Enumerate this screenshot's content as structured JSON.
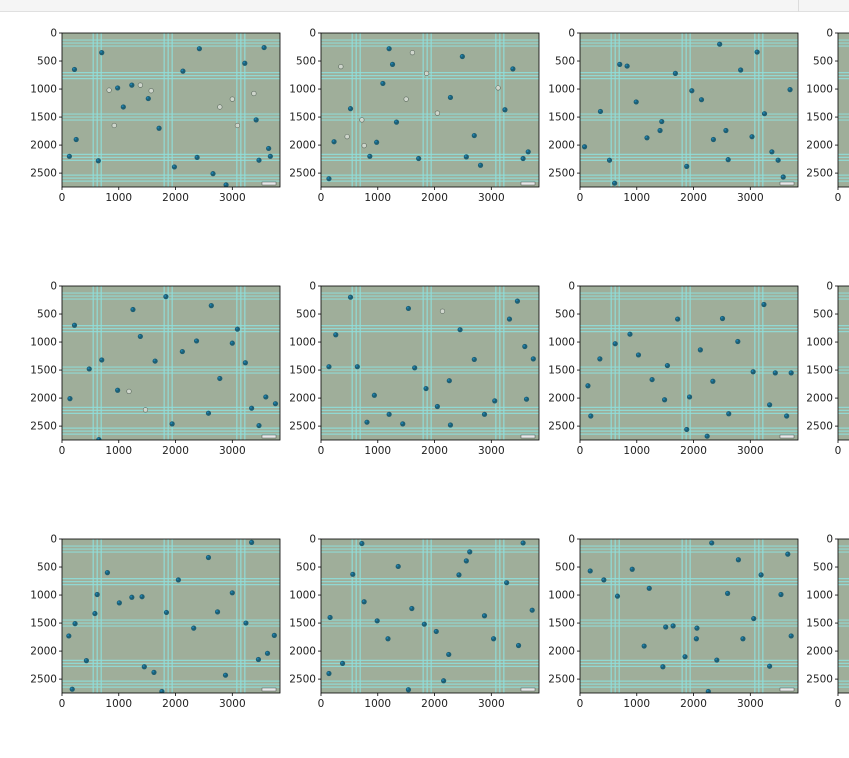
{
  "window": {
    "title": ""
  },
  "colors": {
    "background": "#9fae9a",
    "grid": "#8fe0dc",
    "cell_dark": "#1d5f74",
    "cell_accent": "#1f84b3",
    "cell_light": "#cfd6cc",
    "axis": "#000000"
  },
  "chart_data": {
    "type": "image-grid",
    "layout": {
      "rows": 3,
      "cols": 4
    },
    "xlim": [
      0,
      3840
    ],
    "ylim": [
      2748,
      0
    ],
    "xticks": [
      0,
      1000,
      2000,
      3000
    ],
    "yticks": [
      0,
      500,
      1000,
      1500,
      2000,
      2500
    ],
    "xlabel": "",
    "ylabel": "",
    "grid_lines": {
      "vertical_x": [
        620,
        1870,
        3150
      ],
      "horizontal_y": [
        180,
        760,
        1500,
        2220,
        2590
      ]
    },
    "panels": [
      {
        "id": "r1c1",
        "row": 1,
        "col": 1,
        "cells": [
          [
            220,
            650,
            "d"
          ],
          [
            700,
            350,
            "d"
          ],
          [
            830,
            1020,
            "l"
          ],
          [
            980,
            980,
            "d"
          ],
          [
            1080,
            1320,
            "d"
          ],
          [
            1230,
            930,
            "d"
          ],
          [
            1380,
            930,
            "l"
          ],
          [
            1570,
            1030,
            "l"
          ],
          [
            1710,
            1700,
            "d"
          ],
          [
            2130,
            680,
            "d"
          ],
          [
            2420,
            280,
            "d"
          ],
          [
            2660,
            2510,
            "d"
          ],
          [
            2780,
            1320,
            "l"
          ],
          [
            3000,
            1180,
            "l"
          ],
          [
            3090,
            1650,
            "l"
          ],
          [
            3220,
            540,
            "d"
          ],
          [
            3420,
            1550,
            "d"
          ],
          [
            3560,
            260,
            "d"
          ],
          [
            3640,
            2060,
            "d"
          ],
          [
            3670,
            2200,
            "d"
          ],
          [
            250,
            1900,
            "d"
          ],
          [
            640,
            2280,
            "d"
          ],
          [
            920,
            1650,
            "l"
          ],
          [
            1520,
            1170,
            "d"
          ],
          [
            1980,
            2390,
            "d"
          ],
          [
            2380,
            2220,
            "d"
          ],
          [
            2890,
            2710,
            "d"
          ],
          [
            3380,
            1080,
            "l"
          ],
          [
            3470,
            2270,
            "d"
          ],
          [
            130,
            2200,
            "d"
          ]
        ]
      },
      {
        "id": "r1c2",
        "row": 1,
        "col": 2,
        "cells": [
          [
            350,
            600,
            "l"
          ],
          [
            520,
            1350,
            "d"
          ],
          [
            720,
            1550,
            "l"
          ],
          [
            860,
            2200,
            "d"
          ],
          [
            980,
            1950,
            "d"
          ],
          [
            1200,
            280,
            "d"
          ],
          [
            1260,
            560,
            "d"
          ],
          [
            1500,
            1180,
            "l"
          ],
          [
            1720,
            2240,
            "d"
          ],
          [
            2050,
            1430,
            "l"
          ],
          [
            2280,
            1150,
            "d"
          ],
          [
            2490,
            420,
            "d"
          ],
          [
            2700,
            1830,
            "d"
          ],
          [
            3120,
            980,
            "l"
          ],
          [
            3380,
            640,
            "d"
          ],
          [
            3560,
            2240,
            "d"
          ],
          [
            230,
            1940,
            "d"
          ],
          [
            460,
            1850,
            "l"
          ],
          [
            760,
            2010,
            "l"
          ],
          [
            1090,
            900,
            "d"
          ],
          [
            1330,
            1590,
            "d"
          ],
          [
            1610,
            350,
            "l"
          ],
          [
            2810,
            2360,
            "d"
          ],
          [
            3240,
            1370,
            "d"
          ],
          [
            3650,
            2120,
            "d"
          ],
          [
            140,
            2600,
            "d"
          ],
          [
            1860,
            720,
            "l"
          ],
          [
            2560,
            2210,
            "d"
          ]
        ]
      },
      {
        "id": "r1c3",
        "row": 1,
        "col": 3,
        "cells": [
          [
            80,
            2030,
            "d"
          ],
          [
            360,
            1400,
            "d"
          ],
          [
            520,
            2270,
            "d"
          ],
          [
            700,
            560,
            "d"
          ],
          [
            830,
            590,
            "d"
          ],
          [
            990,
            1230,
            "d"
          ],
          [
            1180,
            1870,
            "d"
          ],
          [
            1410,
            1740,
            "d"
          ],
          [
            1680,
            720,
            "d"
          ],
          [
            1880,
            2380,
            "d"
          ],
          [
            2140,
            1190,
            "d"
          ],
          [
            2350,
            1900,
            "d"
          ],
          [
            2570,
            1740,
            "d"
          ],
          [
            2830,
            660,
            "d"
          ],
          [
            3030,
            1850,
            "d"
          ],
          [
            3250,
            1440,
            "d"
          ],
          [
            3490,
            2270,
            "d"
          ],
          [
            3700,
            1010,
            "d"
          ],
          [
            3580,
            2570,
            "d"
          ],
          [
            610,
            2680,
            "d"
          ],
          [
            1440,
            1580,
            "d"
          ],
          [
            2610,
            2260,
            "d"
          ],
          [
            3120,
            340,
            "d"
          ],
          [
            3380,
            2120,
            "d"
          ],
          [
            1970,
            1030,
            "d"
          ],
          [
            2460,
            200,
            "d"
          ]
        ]
      },
      {
        "id": "r2c1",
        "row": 2,
        "col": 1,
        "cells": [
          [
            220,
            700,
            "d"
          ],
          [
            480,
            1480,
            "d"
          ],
          [
            700,
            1320,
            "d"
          ],
          [
            980,
            1860,
            "d"
          ],
          [
            1250,
            420,
            "d"
          ],
          [
            1380,
            900,
            "d"
          ],
          [
            1640,
            1340,
            "d"
          ],
          [
            1830,
            190,
            "d"
          ],
          [
            2120,
            1170,
            "d"
          ],
          [
            2370,
            980,
            "d"
          ],
          [
            2580,
            2270,
            "d"
          ],
          [
            2780,
            1650,
            "d"
          ],
          [
            3000,
            1020,
            "d"
          ],
          [
            3230,
            1370,
            "d"
          ],
          [
            3340,
            2180,
            "d"
          ],
          [
            3470,
            2490,
            "d"
          ],
          [
            3590,
            1980,
            "d"
          ],
          [
            3760,
            2100,
            "d"
          ],
          [
            140,
            2010,
            "d"
          ],
          [
            650,
            2740,
            "d"
          ],
          [
            1470,
            2210,
            "l"
          ],
          [
            1940,
            2460,
            "d"
          ],
          [
            2630,
            350,
            "d"
          ],
          [
            3090,
            770,
            "d"
          ],
          [
            1180,
            1880,
            "l"
          ]
        ]
      },
      {
        "id": "r2c2",
        "row": 2,
        "col": 2,
        "cells": [
          [
            260,
            870,
            "d"
          ],
          [
            520,
            200,
            "d"
          ],
          [
            810,
            2430,
            "d"
          ],
          [
            940,
            1950,
            "d"
          ],
          [
            1200,
            2290,
            "d"
          ],
          [
            1440,
            2460,
            "d"
          ],
          [
            1650,
            1460,
            "d"
          ],
          [
            1850,
            1830,
            "d"
          ],
          [
            2050,
            2150,
            "d"
          ],
          [
            2260,
            1690,
            "d"
          ],
          [
            2450,
            780,
            "d"
          ],
          [
            2700,
            1310,
            "d"
          ],
          [
            2880,
            2290,
            "d"
          ],
          [
            3060,
            2050,
            "d"
          ],
          [
            3320,
            590,
            "d"
          ],
          [
            3590,
            1080,
            "d"
          ],
          [
            3740,
            1300,
            "d"
          ],
          [
            140,
            1440,
            "d"
          ],
          [
            640,
            1440,
            "d"
          ],
          [
            1540,
            400,
            "d"
          ],
          [
            2140,
            450,
            "l"
          ],
          [
            3460,
            270,
            "d"
          ],
          [
            2280,
            2480,
            "d"
          ],
          [
            3620,
            2020,
            "d"
          ]
        ]
      },
      {
        "id": "r2c3",
        "row": 2,
        "col": 3,
        "cells": [
          [
            190,
            2320,
            "d"
          ],
          [
            350,
            1300,
            "d"
          ],
          [
            620,
            1030,
            "d"
          ],
          [
            880,
            860,
            "d"
          ],
          [
            1030,
            1230,
            "d"
          ],
          [
            1270,
            1670,
            "d"
          ],
          [
            1490,
            2030,
            "d"
          ],
          [
            1720,
            590,
            "d"
          ],
          [
            1930,
            1980,
            "d"
          ],
          [
            2120,
            1140,
            "d"
          ],
          [
            2340,
            1700,
            "d"
          ],
          [
            2510,
            580,
            "d"
          ],
          [
            2780,
            990,
            "d"
          ],
          [
            3050,
            1530,
            "d"
          ],
          [
            3240,
            330,
            "d"
          ],
          [
            3440,
            1550,
            "d"
          ],
          [
            3640,
            2320,
            "d"
          ],
          [
            3720,
            1550,
            "d"
          ],
          [
            140,
            1780,
            "d"
          ],
          [
            1540,
            1420,
            "d"
          ],
          [
            2620,
            2280,
            "d"
          ],
          [
            3340,
            2120,
            "d"
          ],
          [
            1880,
            2560,
            "d"
          ],
          [
            2240,
            2680,
            "d"
          ]
        ]
      },
      {
        "id": "r3c1",
        "row": 3,
        "col": 1,
        "cells": [
          [
            230,
            1510,
            "d"
          ],
          [
            430,
            2170,
            "d"
          ],
          [
            620,
            990,
            "d"
          ],
          [
            800,
            600,
            "d"
          ],
          [
            1010,
            1140,
            "d"
          ],
          [
            1230,
            1040,
            "d"
          ],
          [
            1410,
            1030,
            "d"
          ],
          [
            1620,
            2380,
            "d"
          ],
          [
            1840,
            1310,
            "d"
          ],
          [
            2050,
            730,
            "d"
          ],
          [
            2320,
            1590,
            "d"
          ],
          [
            2580,
            330,
            "d"
          ],
          [
            2740,
            1300,
            "d"
          ],
          [
            3000,
            960,
            "d"
          ],
          [
            3240,
            1500,
            "d"
          ],
          [
            3460,
            2150,
            "d"
          ],
          [
            3620,
            2040,
            "d"
          ],
          [
            3740,
            1720,
            "d"
          ],
          [
            120,
            1730,
            "d"
          ],
          [
            1450,
            2280,
            "d"
          ],
          [
            2880,
            2430,
            "d"
          ],
          [
            3340,
            60,
            "d"
          ],
          [
            580,
            1330,
            "d"
          ],
          [
            1760,
            2720,
            "d"
          ],
          [
            180,
            2680,
            "d"
          ]
        ]
      },
      {
        "id": "r3c2",
        "row": 3,
        "col": 2,
        "cells": [
          [
            160,
            1400,
            "d"
          ],
          [
            380,
            2220,
            "d"
          ],
          [
            560,
            630,
            "d"
          ],
          [
            760,
            1120,
            "d"
          ],
          [
            990,
            1460,
            "d"
          ],
          [
            1180,
            1780,
            "d"
          ],
          [
            1360,
            490,
            "d"
          ],
          [
            1600,
            1240,
            "d"
          ],
          [
            1820,
            1520,
            "d"
          ],
          [
            2030,
            1650,
            "d"
          ],
          [
            2250,
            2060,
            "d"
          ],
          [
            2430,
            640,
            "d"
          ],
          [
            2620,
            230,
            "d"
          ],
          [
            2880,
            1370,
            "d"
          ],
          [
            3040,
            1780,
            "d"
          ],
          [
            3270,
            780,
            "d"
          ],
          [
            3480,
            1900,
            "d"
          ],
          [
            3720,
            1270,
            "d"
          ],
          [
            140,
            2400,
            "d"
          ],
          [
            2160,
            2530,
            "d"
          ],
          [
            1540,
            2690,
            "d"
          ],
          [
            3560,
            70,
            "d"
          ],
          [
            720,
            80,
            "d"
          ],
          [
            2560,
            390,
            "d"
          ]
        ]
      },
      {
        "id": "r3c3",
        "row": 3,
        "col": 3,
        "cells": [
          [
            180,
            570,
            "d"
          ],
          [
            420,
            730,
            "d"
          ],
          [
            660,
            1020,
            "d"
          ],
          [
            920,
            540,
            "d"
          ],
          [
            1220,
            880,
            "d"
          ],
          [
            1460,
            2280,
            "d"
          ],
          [
            1640,
            1550,
            "d"
          ],
          [
            1850,
            2100,
            "d"
          ],
          [
            2050,
            1780,
            "d"
          ],
          [
            2260,
            2720,
            "d"
          ],
          [
            2410,
            2160,
            "d"
          ],
          [
            2600,
            970,
            "d"
          ],
          [
            2790,
            370,
            "d"
          ],
          [
            3060,
            1420,
            "d"
          ],
          [
            3340,
            2270,
            "d"
          ],
          [
            3540,
            990,
            "d"
          ],
          [
            3720,
            1730,
            "d"
          ],
          [
            1130,
            1910,
            "d"
          ],
          [
            2870,
            1780,
            "d"
          ],
          [
            3190,
            640,
            "d"
          ],
          [
            2060,
            1590,
            "d"
          ],
          [
            3660,
            270,
            "d"
          ],
          [
            1510,
            1570,
            "d"
          ],
          [
            2320,
            70,
            "d"
          ]
        ]
      },
      {
        "id": "r1c4",
        "row": 1,
        "col": 4,
        "cells": []
      },
      {
        "id": "r2c4",
        "row": 2,
        "col": 4,
        "cells": []
      },
      {
        "id": "r3c4",
        "row": 3,
        "col": 4,
        "cells": []
      }
    ]
  }
}
